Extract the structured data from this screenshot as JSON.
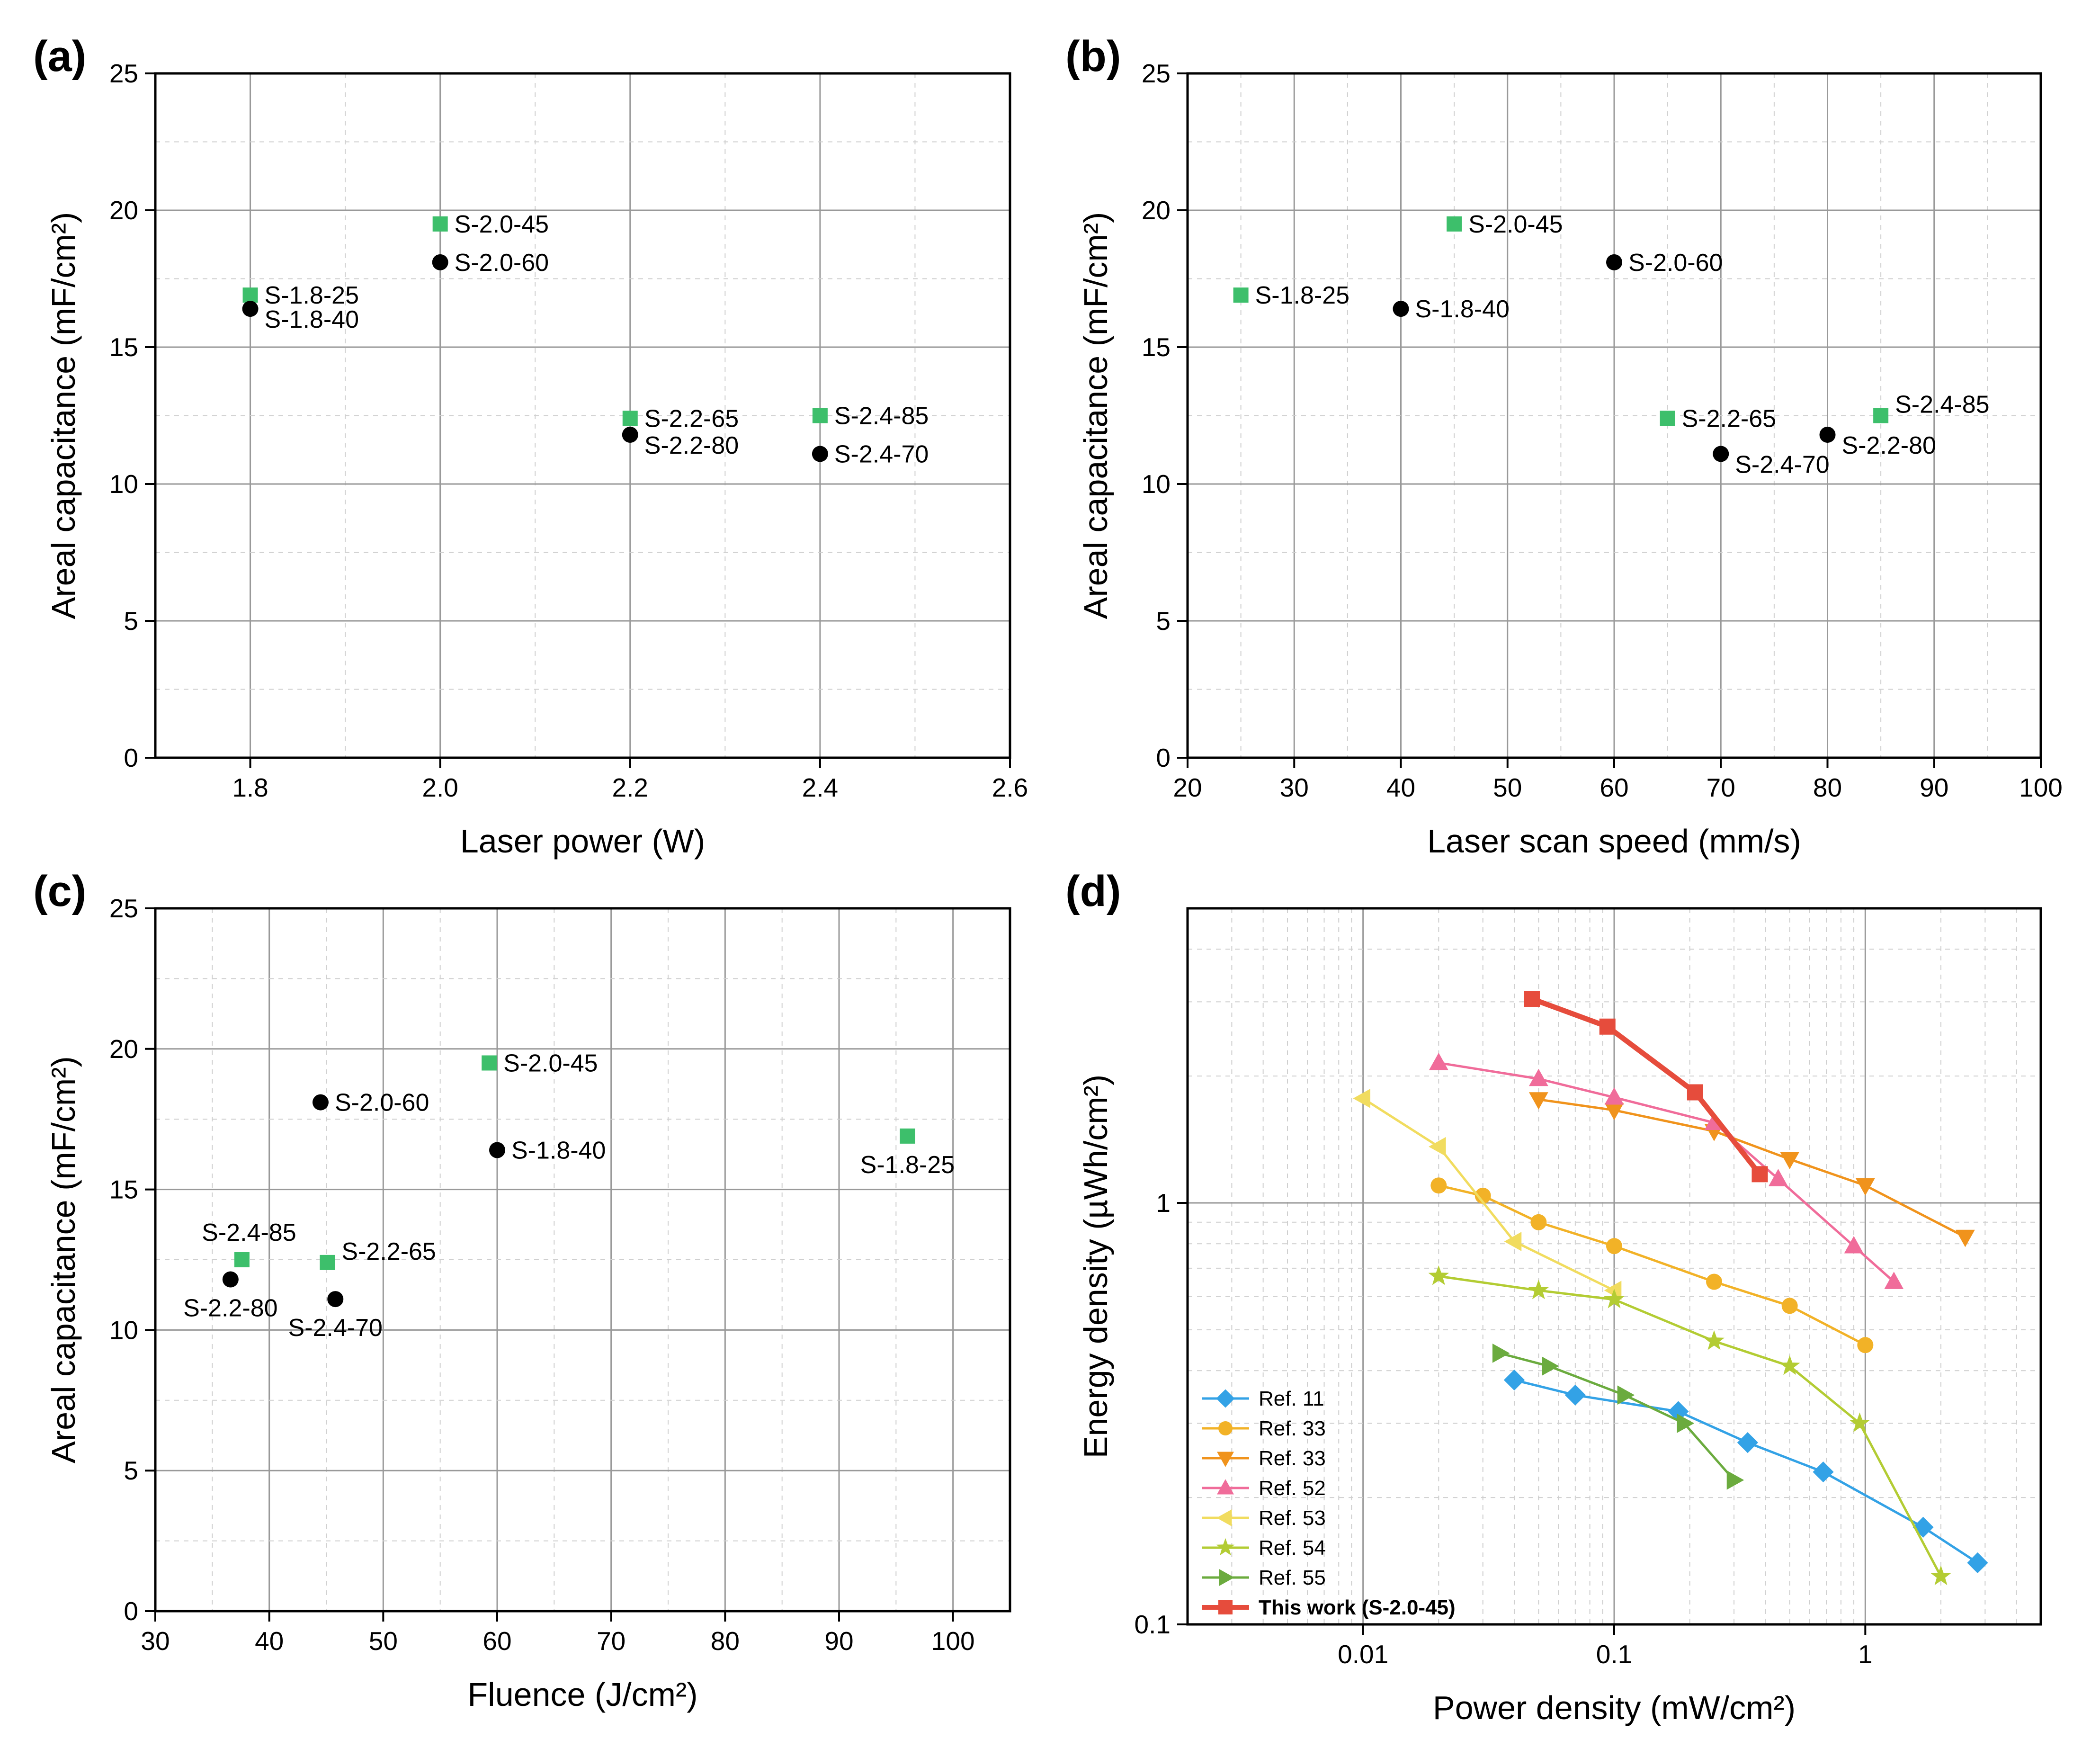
{
  "colors": {
    "green": "#3dbf6b",
    "black": "#000000",
    "ref11": "#33a2e6",
    "ref33a": "#f2b227",
    "ref33b": "#f0931c",
    "ref52": "#f06c9a",
    "ref53": "#f1dc5f",
    "ref54": "#b3cc33",
    "ref55": "#6bab3e",
    "thiswork": "#e64c3c"
  },
  "chart_data": [
    {
      "id": "a",
      "panel_label": "(a)",
      "type": "scatter",
      "xlabel": "Laser power (W)",
      "ylabel": "Areal capacitance (mF/cm²)",
      "xlim": [
        1.7,
        2.6
      ],
      "ylim": [
        0,
        25
      ],
      "xticks": [
        1.8,
        2.0,
        2.2,
        2.4,
        2.6
      ],
      "xtick_labels": [
        "1.8",
        "2.0",
        "2.2",
        "2.4",
        "2.6"
      ],
      "yticks": [
        0,
        5,
        10,
        15,
        20,
        25
      ],
      "ytick_labels": [
        "0",
        "5",
        "10",
        "15",
        "20",
        "25"
      ],
      "grid": true,
      "points": [
        {
          "label": "S-1.8-25",
          "x": 1.8,
          "y": 16.9,
          "marker": "square",
          "color": "green",
          "label_pos": "right"
        },
        {
          "label": "S-1.8-40",
          "x": 1.8,
          "y": 16.4,
          "marker": "circle",
          "color": "black",
          "label_pos": "right-below"
        },
        {
          "label": "S-2.0-45",
          "x": 2.0,
          "y": 19.5,
          "marker": "square",
          "color": "green",
          "label_pos": "right"
        },
        {
          "label": "S-2.0-60",
          "x": 2.0,
          "y": 18.1,
          "marker": "circle",
          "color": "black",
          "label_pos": "right"
        },
        {
          "label": "S-2.2-65",
          "x": 2.2,
          "y": 12.4,
          "marker": "square",
          "color": "green",
          "label_pos": "right"
        },
        {
          "label": "S-2.2-80",
          "x": 2.2,
          "y": 11.8,
          "marker": "circle",
          "color": "black",
          "label_pos": "right-below"
        },
        {
          "label": "S-2.4-85",
          "x": 2.4,
          "y": 12.5,
          "marker": "square",
          "color": "green",
          "label_pos": "right"
        },
        {
          "label": "S-2.4-70",
          "x": 2.4,
          "y": 11.1,
          "marker": "circle",
          "color": "black",
          "label_pos": "right"
        }
      ]
    },
    {
      "id": "b",
      "panel_label": "(b)",
      "type": "scatter",
      "xlabel": "Laser scan speed (mm/s)",
      "ylabel": "Areal capacitance (mF/cm²)",
      "xlim": [
        20,
        100
      ],
      "ylim": [
        0,
        25
      ],
      "xticks": [
        20,
        30,
        40,
        50,
        60,
        70,
        80,
        90,
        100
      ],
      "xtick_labels": [
        "20",
        "30",
        "40",
        "50",
        "60",
        "70",
        "80",
        "90",
        "100"
      ],
      "yticks": [
        0,
        5,
        10,
        15,
        20,
        25
      ],
      "ytick_labels": [
        "0",
        "5",
        "10",
        "15",
        "20",
        "25"
      ],
      "grid": true,
      "points": [
        {
          "label": "S-1.8-25",
          "x": 25,
          "y": 16.9,
          "marker": "square",
          "color": "green",
          "label_pos": "right"
        },
        {
          "label": "S-1.8-40",
          "x": 40,
          "y": 16.4,
          "marker": "circle",
          "color": "black",
          "label_pos": "right"
        },
        {
          "label": "S-2.0-45",
          "x": 45,
          "y": 19.5,
          "marker": "square",
          "color": "green",
          "label_pos": "right"
        },
        {
          "label": "S-2.0-60",
          "x": 60,
          "y": 18.1,
          "marker": "circle",
          "color": "black",
          "label_pos": "right"
        },
        {
          "label": "S-2.2-65",
          "x": 65,
          "y": 12.4,
          "marker": "square",
          "color": "green",
          "label_pos": "right"
        },
        {
          "label": "S-2.4-70",
          "x": 70,
          "y": 11.1,
          "marker": "circle",
          "color": "black",
          "label_pos": "right-below"
        },
        {
          "label": "S-2.2-80",
          "x": 80,
          "y": 11.8,
          "marker": "circle",
          "color": "black",
          "label_pos": "right-below"
        },
        {
          "label": "S-2.4-85",
          "x": 85,
          "y": 12.5,
          "marker": "square",
          "color": "green",
          "label_pos": "right-above"
        }
      ]
    },
    {
      "id": "c",
      "panel_label": "(c)",
      "type": "scatter",
      "xlabel": "Fluence (J/cm²)",
      "ylabel": "Areal capacitance (mF/cm²)",
      "xlim": [
        30,
        105
      ],
      "ylim": [
        0,
        25
      ],
      "xticks": [
        30,
        40,
        50,
        60,
        70,
        80,
        90,
        100
      ],
      "xtick_labels": [
        "30",
        "40",
        "50",
        "60",
        "70",
        "80",
        "90",
        "100"
      ],
      "yticks": [
        0,
        5,
        10,
        15,
        20,
        25
      ],
      "ytick_labels": [
        "0",
        "5",
        "10",
        "15",
        "20",
        "25"
      ],
      "grid": true,
      "points": [
        {
          "label": "S-2.0-45",
          "x": 59.3,
          "y": 19.5,
          "marker": "square",
          "color": "green",
          "label_pos": "right"
        },
        {
          "label": "S-2.0-60",
          "x": 44.5,
          "y": 18.1,
          "marker": "circle",
          "color": "black",
          "label_pos": "right"
        },
        {
          "label": "S-1.8-40",
          "x": 60.0,
          "y": 16.4,
          "marker": "circle",
          "color": "black",
          "label_pos": "right"
        },
        {
          "label": "S-1.8-25",
          "x": 96.0,
          "y": 16.9,
          "marker": "square",
          "color": "green",
          "label_pos": "below"
        },
        {
          "label": "S-2.4-85",
          "x": 37.6,
          "y": 12.5,
          "marker": "square",
          "color": "green",
          "label_pos": "above"
        },
        {
          "label": "S-2.2-80",
          "x": 36.6,
          "y": 11.8,
          "marker": "circle",
          "color": "black",
          "label_pos": "below"
        },
        {
          "label": "S-2.2-65",
          "x": 45.1,
          "y": 12.4,
          "marker": "square",
          "color": "green",
          "label_pos": "right-above"
        },
        {
          "label": "S-2.4-70",
          "x": 45.8,
          "y": 11.1,
          "marker": "circle",
          "color": "black",
          "label_pos": "below"
        }
      ]
    },
    {
      "id": "d",
      "panel_label": "(d)",
      "type": "line",
      "xscale": "log",
      "yscale": "log",
      "xlabel": "Power density (mW/cm²)",
      "ylabel": "Energy density (µWh/cm²)",
      "xlim": [
        0.002,
        5
      ],
      "ylim": [
        0.1,
        5
      ],
      "xticks": [
        0.01,
        0.1,
        1
      ],
      "xtick_labels": [
        "0.01",
        "0.1",
        "1"
      ],
      "yticks": [
        0.1,
        1
      ],
      "ytick_labels": [
        "0.1",
        "1"
      ],
      "grid": true,
      "legend": "bottom-left",
      "series": [
        {
          "name": "Ref. 11",
          "marker": "diamond",
          "color": "ref11",
          "x": [
            0.04,
            0.07,
            0.18,
            0.34,
            0.68,
            1.7,
            2.8
          ],
          "y": [
            0.38,
            0.35,
            0.32,
            0.27,
            0.23,
            0.17,
            0.14
          ]
        },
        {
          "name": "Ref. 33",
          "marker": "circle",
          "color": "ref33a",
          "x": [
            0.02,
            0.03,
            0.05,
            0.1,
            0.25,
            0.5,
            1.0
          ],
          "y": [
            1.1,
            1.04,
            0.9,
            0.79,
            0.65,
            0.57,
            0.46
          ]
        },
        {
          "name": "Ref. 33",
          "marker": "triangle-down",
          "color": "ref33b",
          "x": [
            0.05,
            0.1,
            0.25,
            0.5,
            1.0,
            2.5
          ],
          "y": [
            1.76,
            1.66,
            1.48,
            1.27,
            1.1,
            0.83
          ]
        },
        {
          "name": "Ref. 52",
          "marker": "triangle-up",
          "color": "ref52",
          "x": [
            0.02,
            0.05,
            0.1,
            0.25,
            0.45,
            0.9,
            1.3
          ],
          "y": [
            2.15,
            1.97,
            1.78,
            1.55,
            1.14,
            0.79,
            0.65
          ]
        },
        {
          "name": "Ref. 53",
          "marker": "triangle-left",
          "color": "ref53",
          "x": [
            0.01,
            0.02,
            0.04,
            0.1
          ],
          "y": [
            1.77,
            1.36,
            0.81,
            0.62
          ]
        },
        {
          "name": "Ref. 54",
          "marker": "star",
          "color": "ref54",
          "x": [
            0.02,
            0.05,
            0.1,
            0.25,
            0.5,
            0.95,
            2.0
          ],
          "y": [
            0.67,
            0.62,
            0.59,
            0.47,
            0.41,
            0.3,
            0.13
          ]
        },
        {
          "name": "Ref. 55",
          "marker": "triangle-right",
          "color": "ref55",
          "x": [
            0.035,
            0.055,
            0.11,
            0.19,
            0.3
          ],
          "y": [
            0.44,
            0.41,
            0.35,
            0.3,
            0.22
          ]
        },
        {
          "name": "This work (S-2.0-45)",
          "marker": "square",
          "color": "thiswork",
          "bold": true,
          "x": [
            0.047,
            0.094,
            0.21,
            0.38
          ],
          "y": [
            3.05,
            2.62,
            1.83,
            1.17
          ]
        }
      ]
    }
  ]
}
